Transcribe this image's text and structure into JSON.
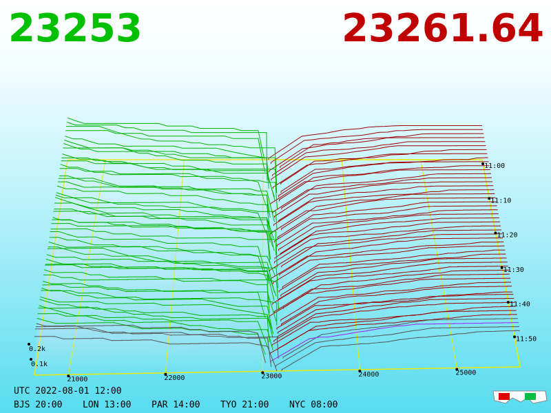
{
  "header": {
    "bid_price": "23253",
    "ask_price": "23261.64"
  },
  "price_axis": {
    "ticks": [
      "21000",
      "22000",
      "23000",
      "24000",
      "25000"
    ]
  },
  "time_axis": {
    "ticks": [
      "11:00",
      "11:10",
      "11:20",
      "11:30",
      "11:40",
      "11:50"
    ]
  },
  "volume_axis": {
    "ticks": [
      "0.2k",
      "0.1k"
    ]
  },
  "footer": {
    "utc": "UTC 2022-08-01 12:00",
    "zones": [
      "BJS 20:00",
      "LON 13:00",
      "PAR 14:00",
      "TYO 21:00",
      "NYC 08:00"
    ]
  }
}
